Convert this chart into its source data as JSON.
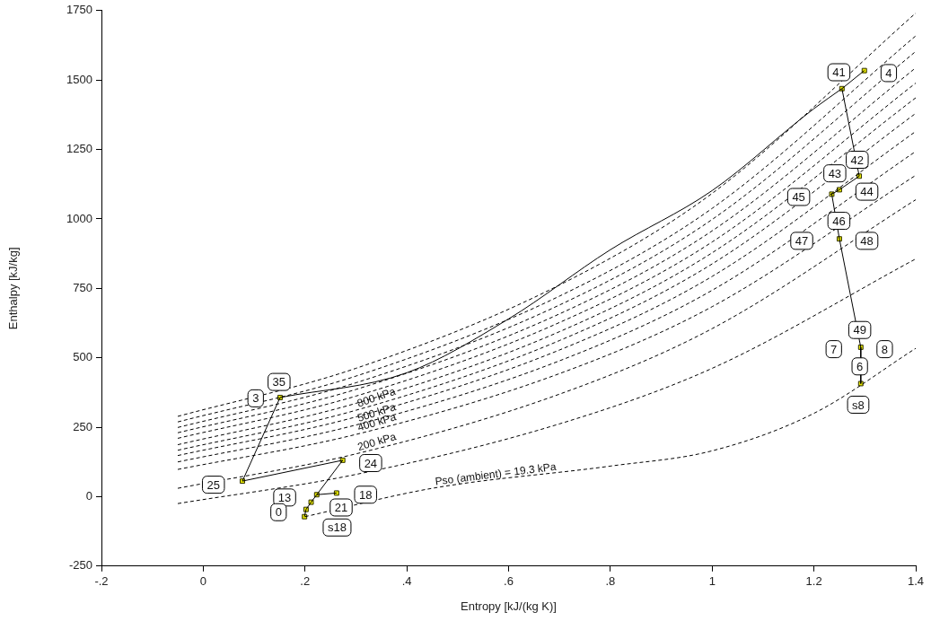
{
  "chart_data": {
    "type": "line",
    "xlabel": "Entropy [kJ/(kg K)]",
    "ylabel": "Enthalpy [kJ/kg]",
    "xlim": [
      -0.2,
      1.4
    ],
    "xticks": [
      {
        "value": -0.2,
        "label": "-.2"
      },
      0,
      {
        "value": 0.2,
        "label": ".2"
      },
      {
        "value": 0.4,
        "label": ".4"
      },
      {
        "value": 0.6,
        "label": ".6"
      },
      {
        "value": 0.8,
        "label": ".8"
      },
      1,
      1.2,
      1.4
    ],
    "ylim": [
      -250,
      1750
    ],
    "yticks": [
      -250,
      0,
      250,
      500,
      750,
      1000,
      1250,
      1500,
      1750
    ],
    "legend": false,
    "series": [
      {
        "type": "line",
        "color": "#000000",
        "line_style": "dashed",
        "marker": "none",
        "x": [
          -0.05,
          0.3,
          0.7,
          1.0,
          1.4
        ],
        "values": [
          289,
          462,
          762,
          1092,
          1741
        ]
      },
      {
        "type": "line",
        "color": "#000000",
        "line_style": "dashed",
        "marker": "none",
        "x": [
          -0.05,
          0.3,
          0.7,
          1.0,
          1.4
        ],
        "values": [
          269,
          434,
          722,
          1038,
          1659
        ]
      },
      {
        "type": "line",
        "color": "#000000",
        "line_style": "dashed",
        "marker": "none",
        "x": [
          -0.05,
          0.3,
          0.7,
          1.0,
          1.4
        ],
        "values": [
          249,
          410,
          690,
          998,
          1603
        ]
      },
      {
        "type": "line",
        "color": "#000000",
        "line_style": "dashed",
        "marker": "none",
        "x": [
          -0.05,
          0.3,
          0.7,
          1.0,
          1.4
        ],
        "values": [
          230,
          386,
          658,
          957,
          1544
        ]
      },
      {
        "type": "line",
        "color": "#000000",
        "line_style": "dashed",
        "marker": "none",
        "x": [
          -0.05,
          0.3,
          0.7,
          1.0,
          1.4
        ],
        "values": [
          210,
          362,
          627,
          917,
          1489
        ]
      },
      {
        "type": "line",
        "color": "#000000",
        "line_style": "dashed",
        "marker": "none",
        "x": [
          -0.05,
          0.3,
          0.7,
          1.0,
          1.4
        ],
        "values": [
          187,
          336,
          594,
          878,
          1436
        ]
      },
      {
        "type": "line",
        "name": "800 kPa",
        "color": "#000000",
        "line_style": "dashed",
        "marker": "none",
        "x": [
          -0.05,
          0.3,
          0.7,
          1.0,
          1.4
        ],
        "values": [
          167,
          311,
          562,
          838,
          1380
        ]
      },
      {
        "type": "line",
        "color": "#000000",
        "line_style": "dashed",
        "marker": "none",
        "x": [
          -0.05,
          0.3,
          0.7,
          1.0,
          1.4
        ],
        "values": [
          148,
          287,
          528,
          793,
          1315
        ]
      },
      {
        "type": "line",
        "name": "500 kPa",
        "color": "#000000",
        "line_style": "dashed",
        "marker": "none",
        "x": [
          -0.05,
          0.3,
          0.7,
          1.0,
          1.4
        ],
        "values": [
          125,
          258,
          489,
          743,
          1243
        ]
      },
      {
        "type": "line",
        "name": "400 kPa",
        "color": "#000000",
        "line_style": "dashed",
        "marker": "none",
        "x": [
          -0.05,
          0.3,
          0.7,
          1.0,
          1.4
        ],
        "values": [
          98,
          224,
          443,
          684,
          1157
        ]
      },
      {
        "type": "line",
        "name": "200 kPa",
        "color": "#000000",
        "line_style": "dashed",
        "marker": "none",
        "x": [
          -0.05,
          0.3,
          0.7,
          1.0,
          1.4
        ],
        "values": [
          30,
          154,
          369,
          605,
          1069
        ]
      },
      {
        "type": "line",
        "color": "#000000",
        "line_style": "dashed",
        "marker": "none",
        "x": [
          -0.05,
          0.3,
          0.7,
          1.0,
          1.4
        ],
        "values": [
          -25,
          80,
          262,
          462,
          856
        ]
      },
      {
        "type": "line",
        "name": "Pso (ambient) = 19.3 kPa",
        "color": "#000000",
        "line_style": "dashed",
        "marker": "none",
        "x": [
          0.2,
          0.45,
          0.8,
          1.0,
          1.2,
          1.4
        ],
        "values": [
          -72,
          30,
          110,
          165,
          300,
          534
        ]
      },
      {
        "type": "line",
        "color": "#000000",
        "line_style": "solid",
        "marker": "none",
        "x": [
          0.151,
          0.4,
          0.6,
          0.8,
          1.0,
          1.2,
          1.255
        ],
        "values": [
          357,
          446,
          640,
          889,
          1102,
          1397,
          1469
        ]
      },
      {
        "type": "line",
        "color": "#000000",
        "line_style": "solid",
        "marker": "none",
        "x": [
          0.151,
          0.077,
          0.274,
          0.223,
          0.212,
          0.202,
          0.199
        ],
        "values": [
          357,
          56,
          131,
          7,
          -20,
          -46,
          -72
        ]
      },
      {
        "type": "line",
        "color": "#000000",
        "line_style": "solid",
        "marker": "none",
        "x": [
          0.223,
          0.262
        ],
        "values": [
          7,
          13
        ]
      },
      {
        "type": "line",
        "color": "#000000",
        "line_style": "solid",
        "marker": "none",
        "x": [
          1.255,
          1.299
        ],
        "values": [
          1469,
          1534
        ]
      },
      {
        "type": "line",
        "color": "#000000",
        "line_style": "solid",
        "marker": "none",
        "x": [
          1.255,
          1.289,
          1.25,
          1.235,
          1.25,
          1.292,
          1.292
        ],
        "values": [
          1469,
          1154,
          1105,
          1089,
          928,
          538,
          407
        ]
      },
      {
        "type": "scatter",
        "color": "#e5e500",
        "marker": "square",
        "x": [
          0.151,
          0.077,
          0.274,
          0.223,
          0.212,
          0.202,
          0.199,
          0.262,
          1.299,
          1.255,
          1.289,
          1.25,
          1.235,
          1.25,
          1.292,
          1.292
        ],
        "values": [
          357,
          56,
          131,
          7,
          -20,
          -46,
          -72,
          13,
          1534,
          1469,
          1154,
          1105,
          1089,
          928,
          538,
          407
        ]
      }
    ],
    "annotations": [
      {
        "text": "35",
        "x": 0.149,
        "y": 413
      },
      {
        "text": "3",
        "x": 0.103,
        "y": 354
      },
      {
        "text": "25",
        "x": 0.02,
        "y": 43
      },
      {
        "text": "24",
        "x": 0.329,
        "y": 121
      },
      {
        "text": "13",
        "x": 0.16,
        "y": -3
      },
      {
        "text": "0",
        "x": 0.148,
        "y": -56
      },
      {
        "text": "21",
        "x": 0.271,
        "y": -39
      },
      {
        "text": "18",
        "x": 0.319,
        "y": 7
      },
      {
        "text": "s18",
        "x": 0.263,
        "y": -111
      },
      {
        "text": "41",
        "x": 1.249,
        "y": 1528
      },
      {
        "text": "4",
        "x": 1.347,
        "y": 1525
      },
      {
        "text": "42",
        "x": 1.285,
        "y": 1213
      },
      {
        "text": "43",
        "x": 1.241,
        "y": 1164
      },
      {
        "text": "44",
        "x": 1.304,
        "y": 1098
      },
      {
        "text": "45",
        "x": 1.17,
        "y": 1079
      },
      {
        "text": "46",
        "x": 1.249,
        "y": 993
      },
      {
        "text": "47",
        "x": 1.176,
        "y": 921
      },
      {
        "text": "48",
        "x": 1.304,
        "y": 921
      },
      {
        "text": "49",
        "x": 1.29,
        "y": 600
      },
      {
        "text": "7",
        "x": 1.239,
        "y": 531
      },
      {
        "text": "8",
        "x": 1.339,
        "y": 531
      },
      {
        "text": "6",
        "x": 1.29,
        "y": 469
      },
      {
        "text": "s8",
        "x": 1.287,
        "y": 331
      }
    ]
  }
}
